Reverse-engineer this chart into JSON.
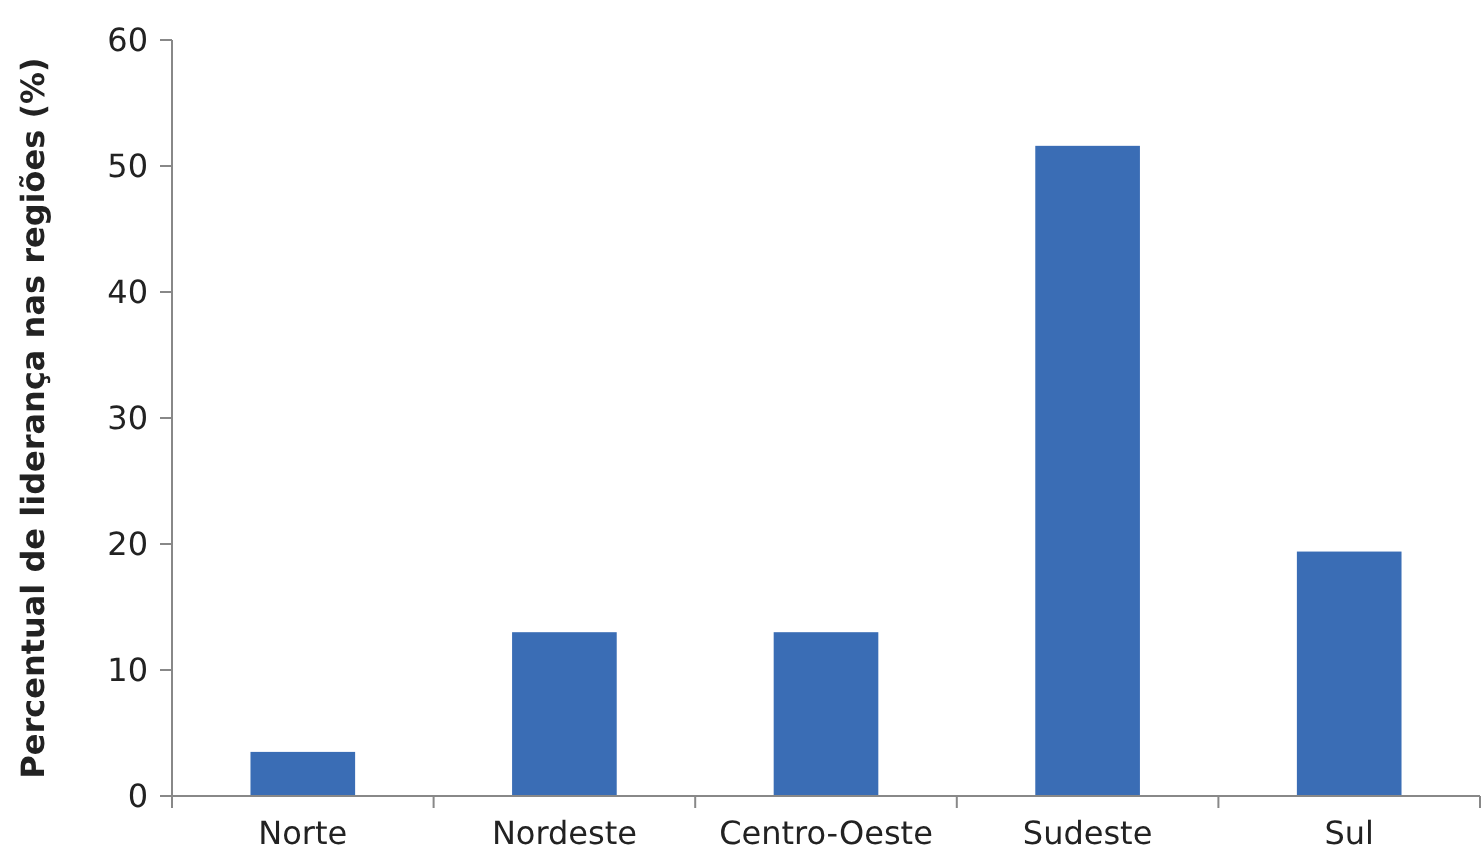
{
  "chart_data": {
    "type": "bar",
    "ylabel": "Percentual de liderança nas regiões (%)",
    "categories": [
      "Norte",
      "Nordeste",
      "Centro-Oeste",
      "Sudeste",
      "Sul"
    ],
    "values": [
      3.5,
      13,
      13,
      51.6,
      19.4
    ],
    "color": "#3a6db5",
    "ylim": [
      0,
      60
    ],
    "yticks": [
      0,
      10,
      20,
      30,
      40,
      50,
      60
    ],
    "grid": false
  }
}
